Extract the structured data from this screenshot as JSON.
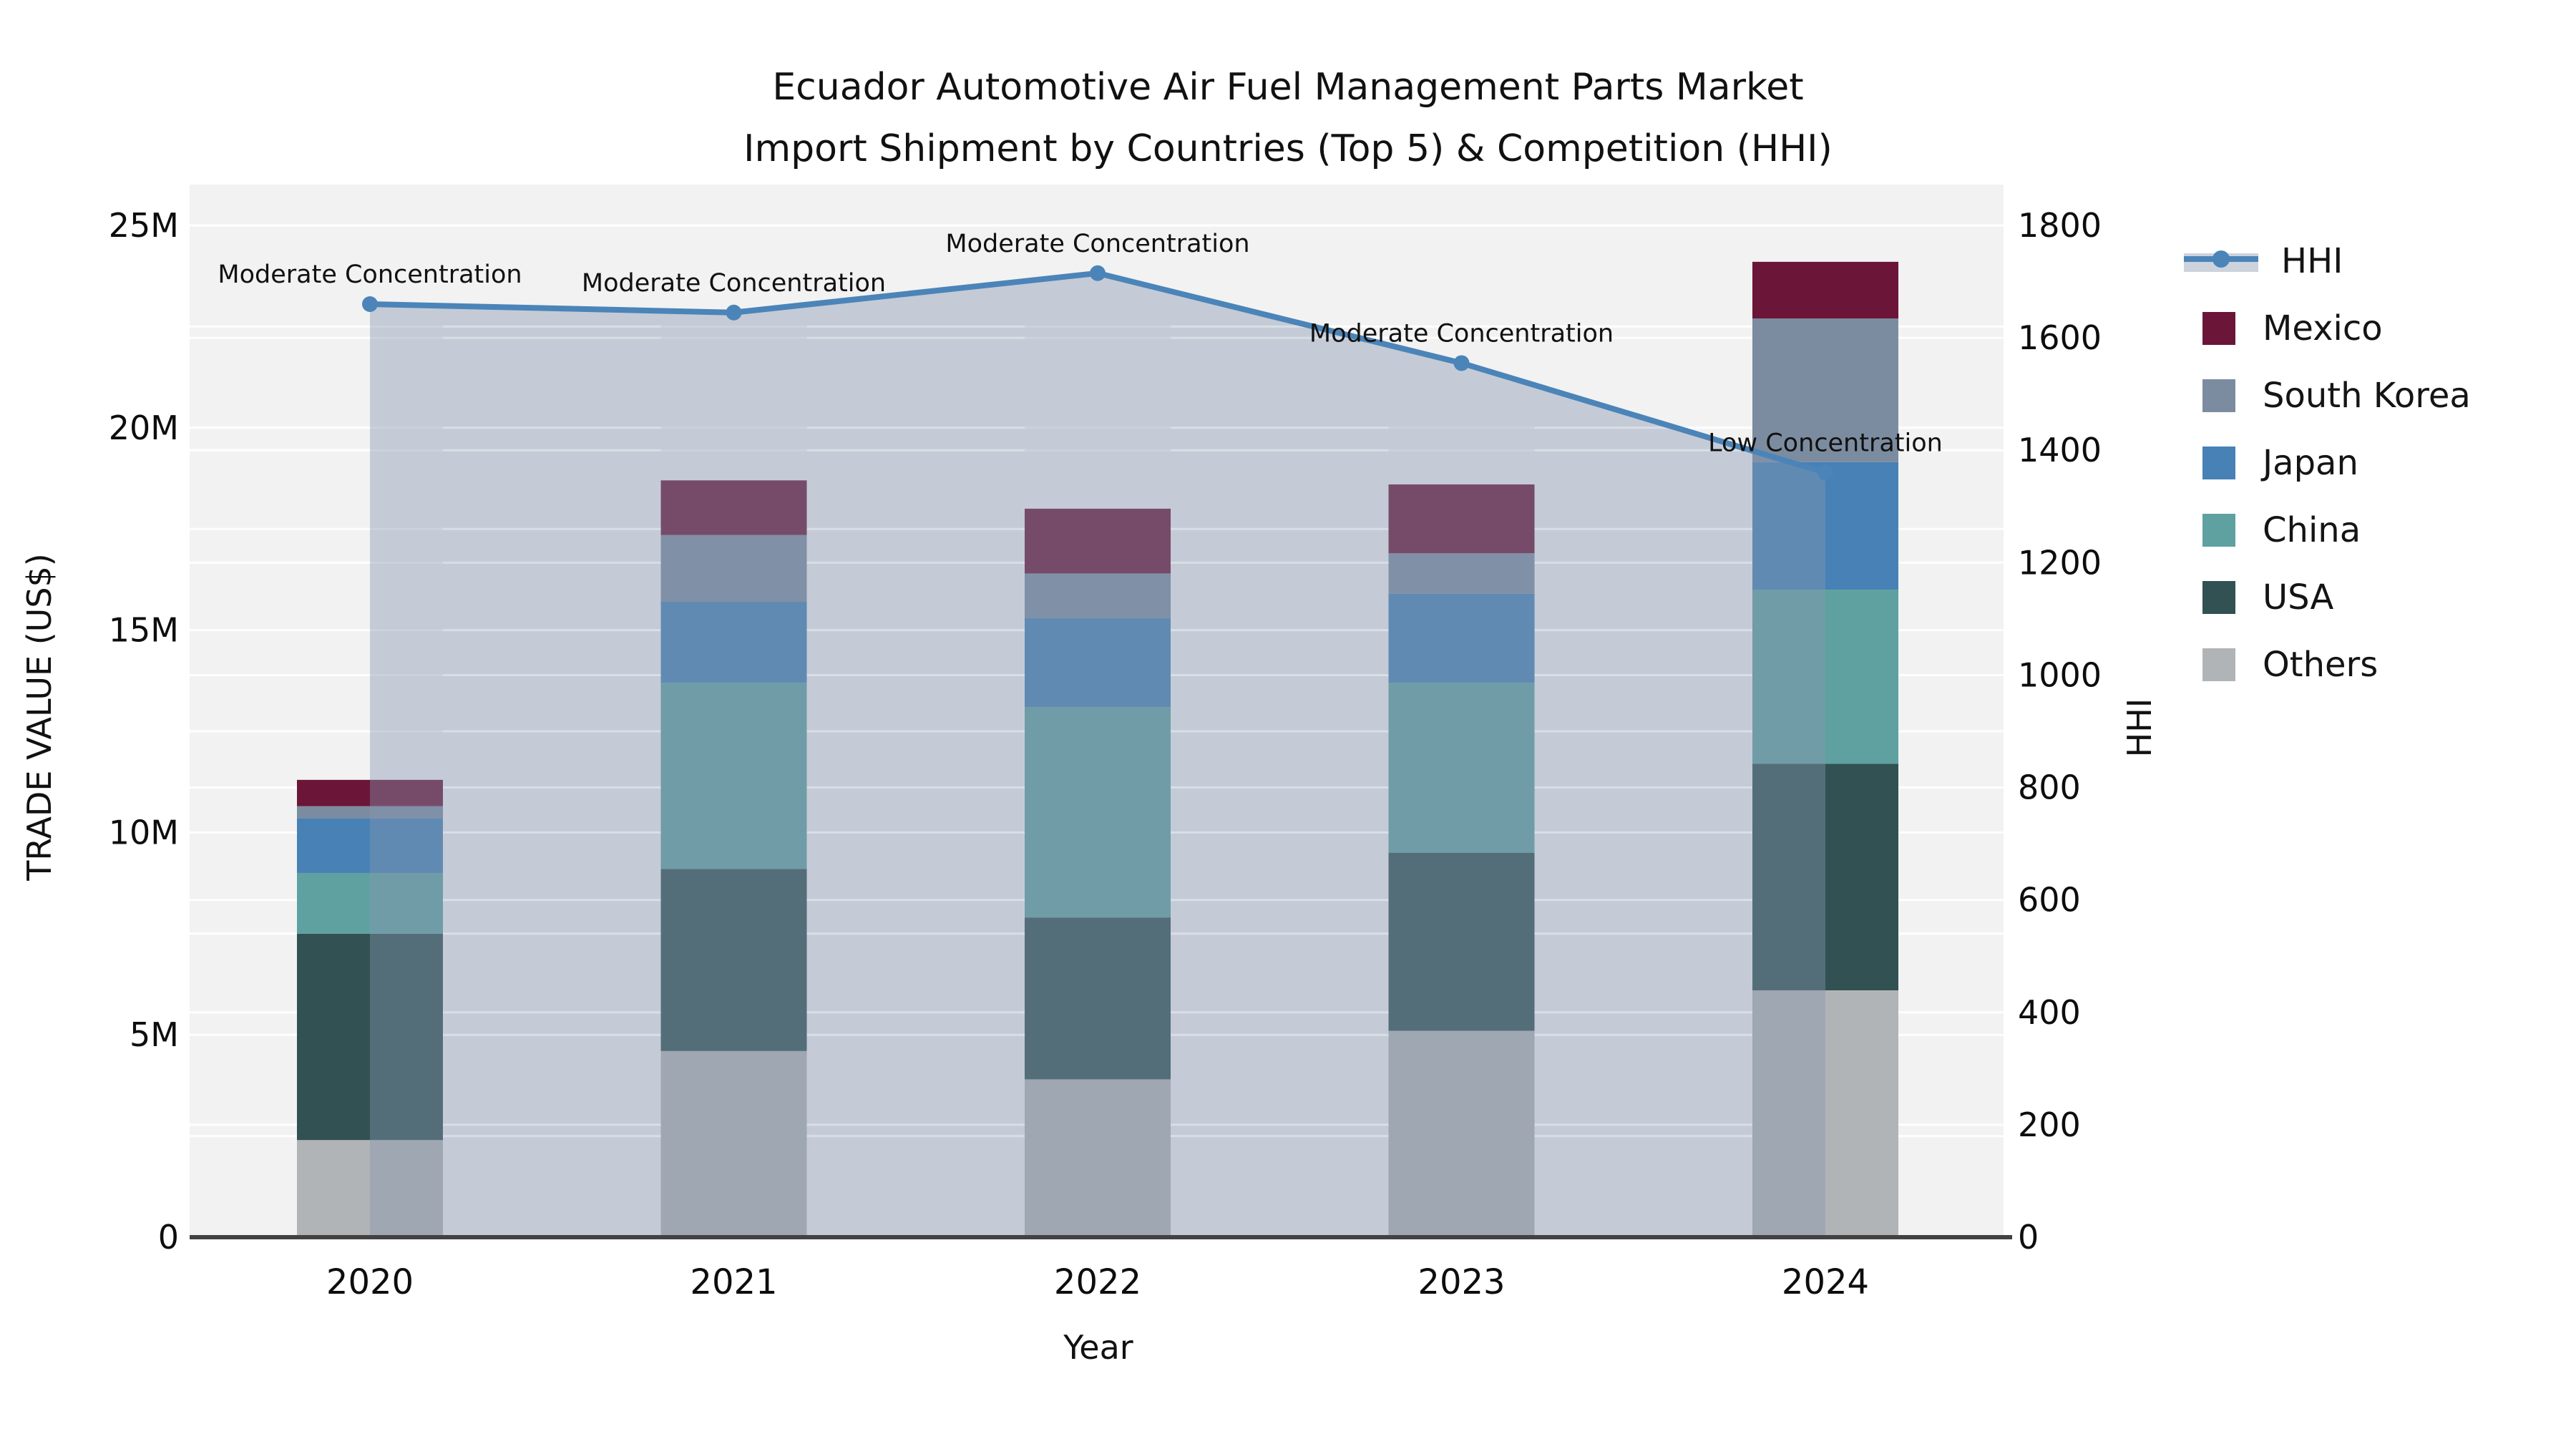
{
  "chart_data": {
    "type": "bar",
    "subtype": "stacked-bar-with-line",
    "title_line1": "Ecuador Automotive Air Fuel Management Parts Market",
    "title_line2": "Import Shipment by Countries (Top 5) & Competition (HHI)",
    "xlabel": "Year",
    "ylabel_left": "TRADE VALUE (US$)",
    "ylabel_right": "HHI",
    "categories": [
      "2020",
      "2021",
      "2022",
      "2023",
      "2024"
    ],
    "left_axis": {
      "min": 0,
      "max_M": 25,
      "tick_values_M": [
        0,
        5,
        10,
        15,
        20,
        25
      ],
      "tick_labels": [
        "0",
        "5M",
        "10M",
        "15M",
        "20M",
        "25M"
      ],
      "grid_step_M": 2.5
    },
    "right_axis": {
      "min": 0,
      "max": 1800,
      "tick_values": [
        0,
        200,
        400,
        600,
        800,
        1000,
        1200,
        1400,
        1600,
        1800
      ],
      "grid_step": 200
    },
    "series": [
      {
        "name": "Others",
        "color": "#b1b4b6",
        "values_M": [
          2.4,
          4.6,
          3.9,
          5.1,
          6.1
        ]
      },
      {
        "name": "USA",
        "color": "#315152",
        "values_M": [
          5.1,
          4.5,
          4.0,
          4.4,
          5.6
        ]
      },
      {
        "name": "China",
        "color": "#5fa1a1",
        "values_M": [
          1.5,
          4.6,
          5.2,
          4.2,
          4.3
        ]
      },
      {
        "name": "Japan",
        "color": "#4781b5",
        "values_M": [
          1.35,
          2.0,
          2.2,
          2.2,
          3.15
        ]
      },
      {
        "name": "South Korea",
        "color": "#7c8ca0",
        "values_M": [
          0.3,
          1.65,
          1.1,
          1.0,
          3.55
        ]
      },
      {
        "name": "Mexico",
        "color": "#6b1638",
        "values_M": [
          0.65,
          1.35,
          1.6,
          1.7,
          1.4
        ]
      }
    ],
    "totals_M": [
      11.3,
      18.7,
      18.0,
      18.6,
      24.1
    ],
    "hhi": {
      "name": "HHI",
      "line_color": "#4b84b8",
      "area_fill": "rgba(134,150,176,0.42)",
      "values": [
        1660,
        1645,
        1715,
        1555,
        1360
      ],
      "annotations": [
        "Moderate Concentration",
        "Moderate Concentration",
        "Moderate Concentration",
        "Moderate Concentration",
        "Low Concentration"
      ]
    },
    "legend": [
      {
        "label": "HHI",
        "type": "line"
      },
      {
        "label": "Mexico",
        "type": "patch",
        "color": "#6b1638"
      },
      {
        "label": "South Korea",
        "type": "patch",
        "color": "#7c8ca0"
      },
      {
        "label": "Japan",
        "type": "patch",
        "color": "#4781b5"
      },
      {
        "label": "China",
        "type": "patch",
        "color": "#5fa1a1"
      },
      {
        "label": "USA",
        "type": "patch",
        "color": "#315152"
      },
      {
        "label": "Others",
        "type": "patch",
        "color": "#b1b4b6"
      }
    ],
    "layout_hints": {
      "plot_bg": "#f2f2f2",
      "grid_on": true,
      "legend_position": "right",
      "axis_line_color": "#424242"
    }
  }
}
